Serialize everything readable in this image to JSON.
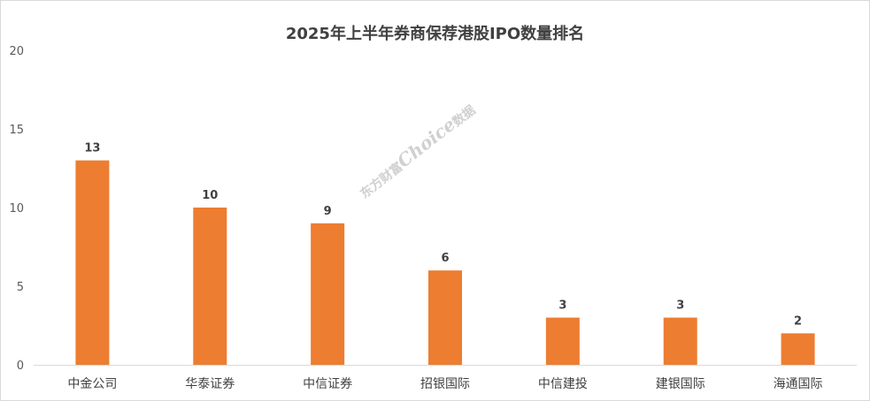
{
  "chart_data": {
    "type": "bar",
    "title": "2025年上半年券商保荐港股IPO数量排名",
    "categories": [
      "中金公司",
      "华泰证券",
      "中信证券",
      "招银国际",
      "中信建投",
      "建银国际",
      "海通国际"
    ],
    "values": [
      13,
      10,
      9,
      6,
      3,
      3,
      2
    ],
    "xlabel": "",
    "ylabel": "",
    "ylim": [
      0,
      20
    ],
    "yticks": [
      0,
      5,
      10,
      15,
      20
    ],
    "grid": false,
    "legend": "none",
    "bar_color": "#ED7D31",
    "data_labels": true
  },
  "watermark": {
    "cn1": "东方财富",
    "en": "Choice",
    "cn2": "数据"
  }
}
